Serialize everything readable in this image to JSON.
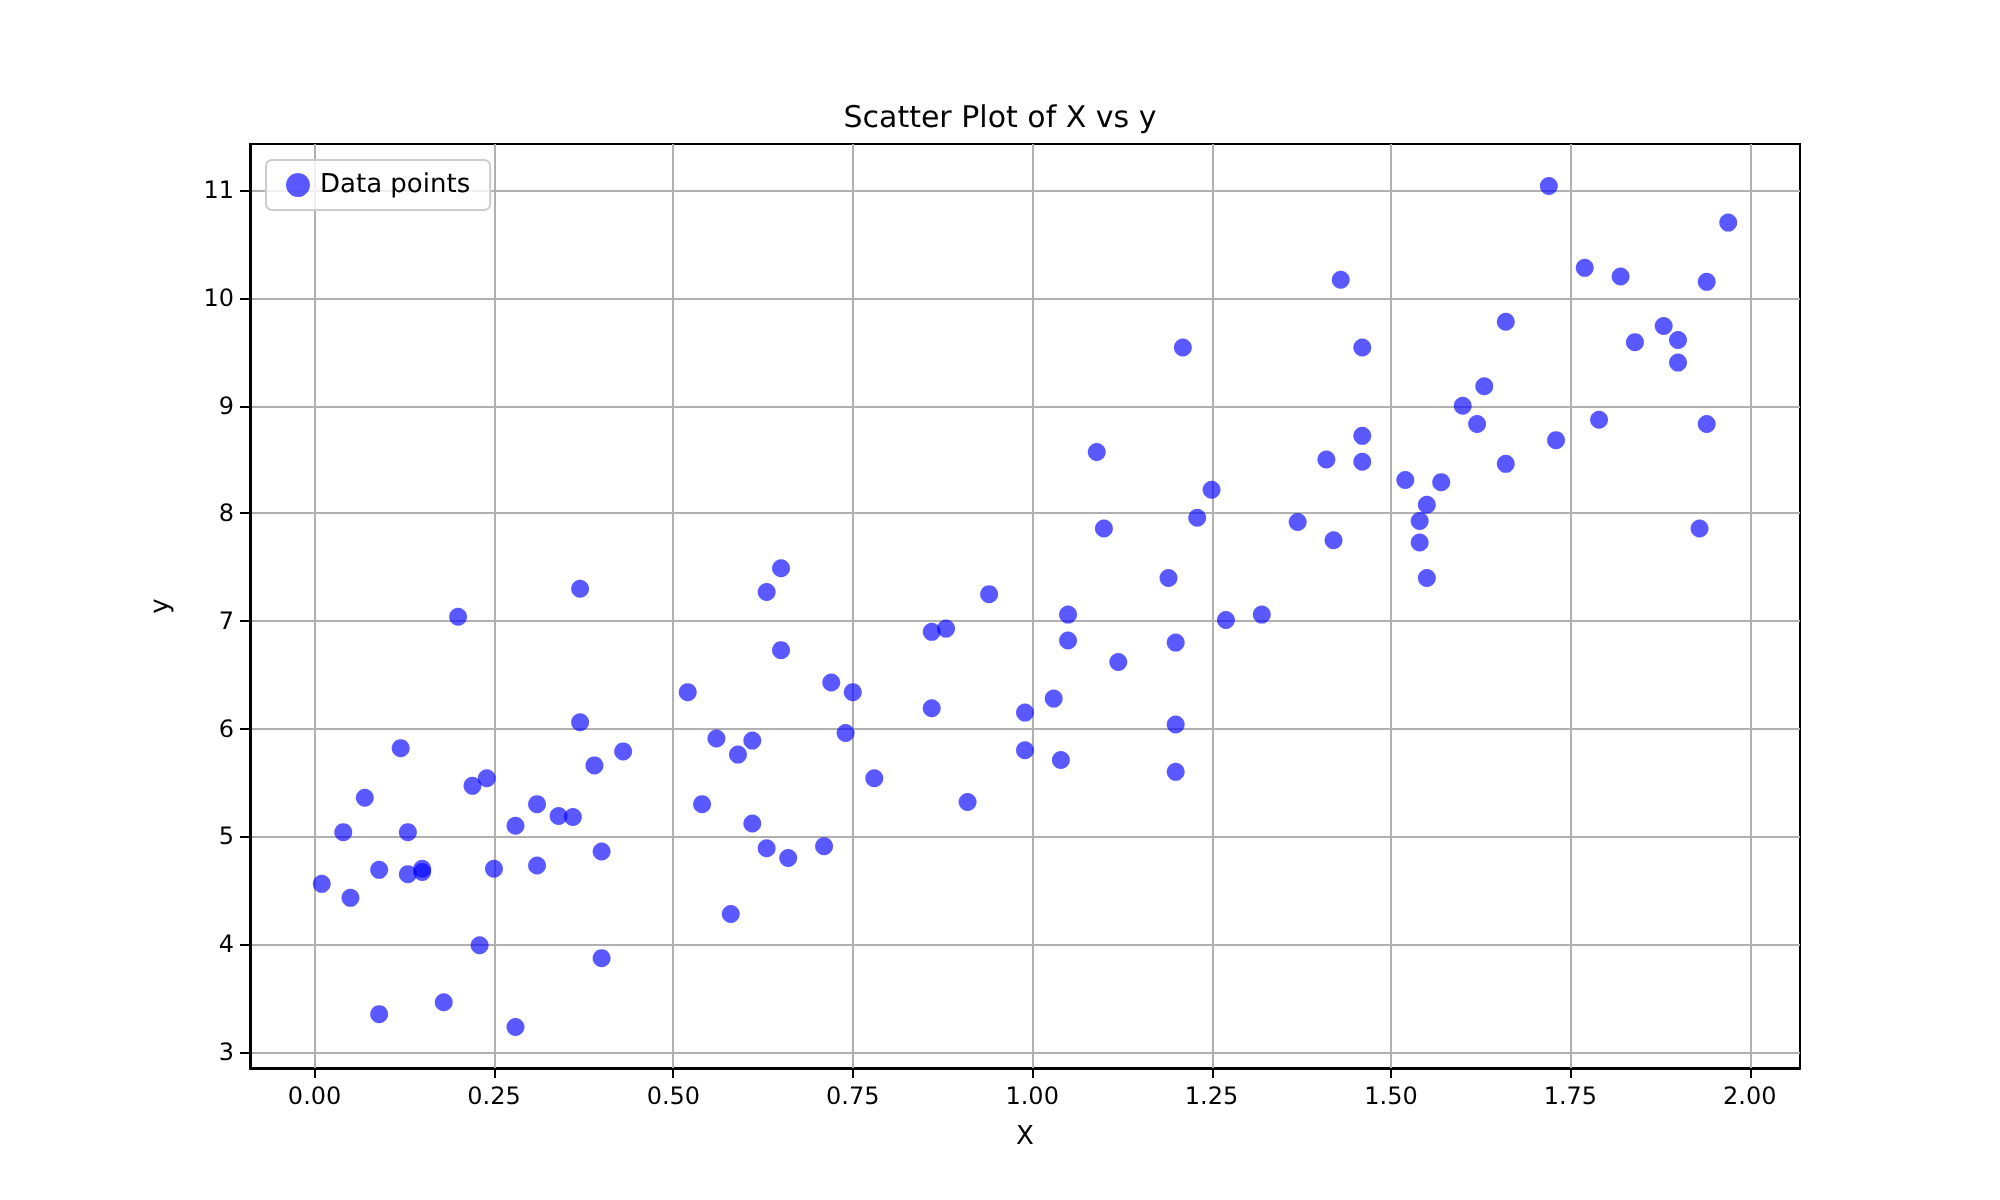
{
  "chart_data": {
    "type": "scatter",
    "title": "Scatter Plot of X vs y",
    "xlabel": "X",
    "ylabel": "y",
    "xlim": [
      -0.09,
      2.07
    ],
    "ylim": [
      2.85,
      11.43
    ],
    "xticks": [
      {
        "value": 0,
        "label": "0.00"
      },
      {
        "value": 0.25,
        "label": "0.25"
      },
      {
        "value": 0.5,
        "label": "0.50"
      },
      {
        "value": 0.75,
        "label": "0.75"
      },
      {
        "value": 1,
        "label": "1.00"
      },
      {
        "value": 1.25,
        "label": "1.25"
      },
      {
        "value": 1.5,
        "label": "1.50"
      },
      {
        "value": 1.75,
        "label": "1.75"
      },
      {
        "value": 2,
        "label": "2.00"
      }
    ],
    "yticks": [
      3,
      4,
      5,
      6,
      7,
      8,
      9,
      10,
      11
    ],
    "grid": true,
    "legend": "top left",
    "marker": "circle",
    "series": [
      {
        "name": "Data points",
        "color": "#0000ff",
        "x": [
          0.01,
          0.04,
          0.05,
          0.07,
          0.09,
          0.09,
          0.12,
          0.13,
          0.13,
          0.15,
          0.15,
          0.18,
          0.2,
          0.22,
          0.23,
          0.24,
          0.25,
          0.28,
          0.28,
          0.31,
          0.31,
          0.34,
          0.36,
          0.37,
          0.37,
          0.39,
          0.4,
          0.4,
          0.43,
          0.52,
          0.54,
          0.56,
          0.58,
          0.59,
          0.61,
          0.61,
          0.63,
          0.63,
          0.65,
          0.65,
          0.66,
          0.71,
          0.72,
          0.74,
          0.75,
          0.78,
          0.86,
          0.86,
          0.88,
          0.91,
          0.94,
          0.99,
          0.99,
          1.03,
          1.04,
          1.05,
          1.05,
          1.09,
          1.1,
          1.12,
          1.19,
          1.2,
          1.2,
          1.2,
          1.21,
          1.23,
          1.25,
          1.27,
          1.32,
          1.37,
          1.41,
          1.42,
          1.43,
          1.46,
          1.46,
          1.46,
          1.52,
          1.54,
          1.54,
          1.55,
          1.55,
          1.57,
          1.6,
          1.62,
          1.63,
          1.66,
          1.66,
          1.72,
          1.73,
          1.77,
          1.79,
          1.82,
          1.84,
          1.88,
          1.9,
          1.9,
          1.94,
          1.94,
          1.93,
          1.97
        ],
        "values": [
          4.56,
          5.04,
          4.43,
          5.36,
          4.69,
          3.35,
          5.82,
          5.04,
          4.65,
          4.67,
          4.7,
          3.46,
          7.04,
          5.47,
          3.99,
          5.54,
          4.7,
          5.1,
          3.23,
          5.3,
          4.73,
          5.19,
          5.18,
          6.06,
          7.3,
          5.66,
          3.87,
          4.86,
          5.79,
          6.34,
          5.3,
          5.91,
          4.28,
          5.76,
          5.89,
          5.12,
          4.89,
          7.27,
          7.49,
          6.73,
          4.8,
          4.91,
          6.43,
          5.96,
          6.34,
          5.54,
          6.9,
          6.19,
          6.93,
          5.32,
          7.25,
          6.15,
          5.8,
          6.28,
          5.71,
          7.06,
          6.82,
          8.57,
          7.86,
          6.62,
          7.4,
          6.04,
          5.6,
          6.8,
          9.54,
          7.96,
          8.22,
          7.01,
          7.06,
          7.92,
          8.5,
          7.75,
          10.17,
          8.72,
          9.54,
          8.48,
          8.31,
          7.93,
          7.73,
          7.4,
          8.08,
          8.29,
          9.0,
          8.83,
          9.18,
          9.78,
          8.46,
          11.04,
          8.68,
          10.28,
          8.87,
          10.2,
          9.59,
          9.74,
          9.61,
          9.4,
          10.15,
          8.83,
          7.86,
          10.7
        ]
      }
    ]
  }
}
